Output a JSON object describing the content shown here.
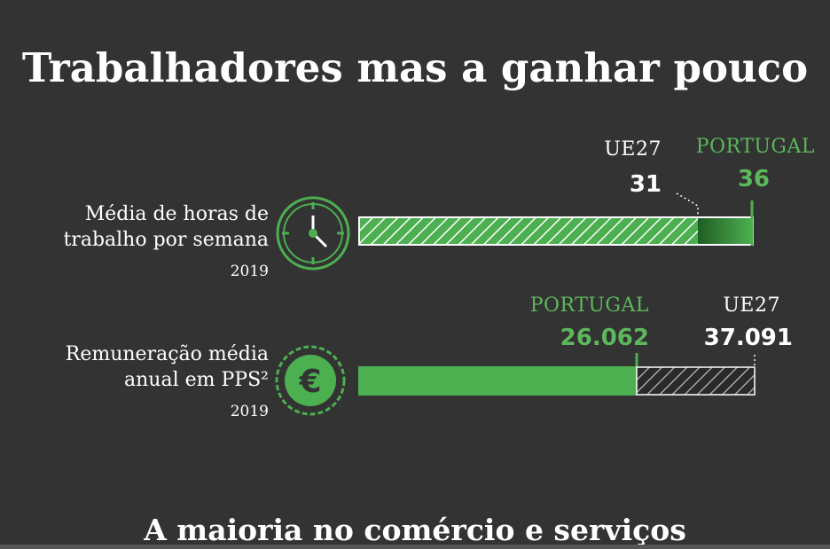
{
  "title": "Trabalhadores mas a ganhar pouco",
  "subtitle": "A maioria no comércio e serviços",
  "colors": {
    "accent": "#4caf50",
    "background": "#333333",
    "text": "#ffffff"
  },
  "rows": [
    {
      "label_line1": "Média de horas de",
      "label_line2": "trabalho por semana",
      "year": "2019",
      "icon": "clock-icon"
    },
    {
      "label_line1": "Remuneração média",
      "label_line2": "anual em PPS²",
      "year": "2019",
      "icon": "euro-icon"
    }
  ],
  "chart_data": [
    {
      "type": "bar",
      "title": "Média de horas de trabalho por semana",
      "year": "2019",
      "series": [
        {
          "name": "UE27",
          "label": "UE27",
          "value": 31,
          "display": "31"
        },
        {
          "name": "PORTUGAL",
          "label": "PORTUGAL",
          "value": 36,
          "display": "36"
        }
      ]
    },
    {
      "type": "bar",
      "title": "Remuneração média anual em PPS²",
      "year": "2019",
      "series": [
        {
          "name": "PORTUGAL",
          "label": "PORTUGAL",
          "value": 26062,
          "display": "26.062"
        },
        {
          "name": "UE27",
          "label": "UE27",
          "value": 37091,
          "display": "37.091"
        }
      ]
    }
  ]
}
